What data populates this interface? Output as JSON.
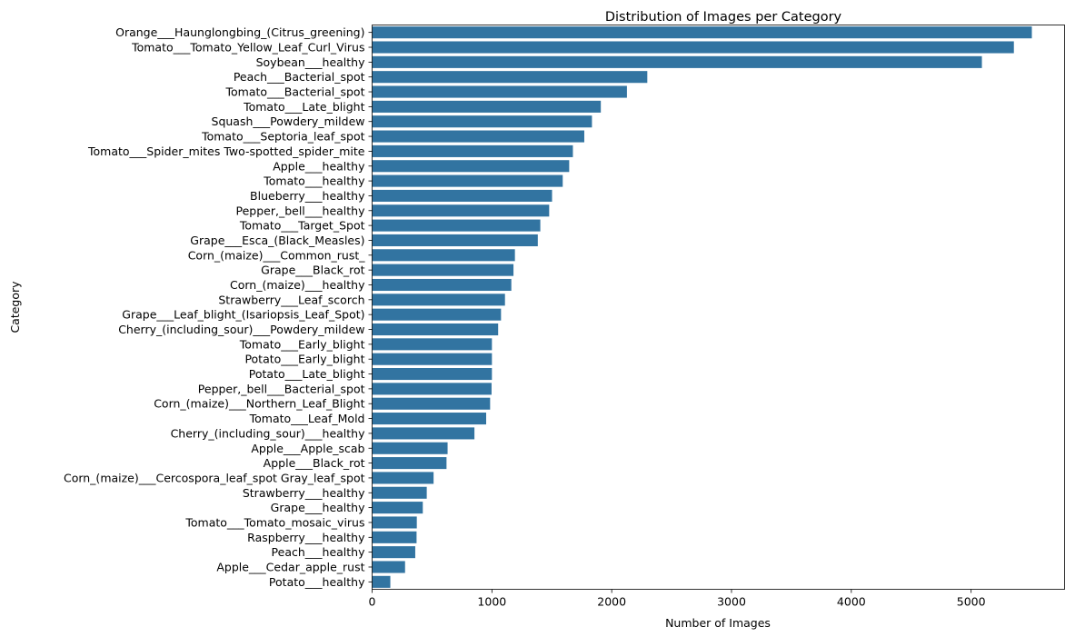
{
  "chart_data": {
    "type": "bar",
    "orientation": "horizontal",
    "title": "Distribution of Images per Category",
    "xlabel": "Number of Images",
    "ylabel": "Category",
    "xlim": [
      0,
      5780
    ],
    "xticks": [
      0,
      1000,
      2000,
      3000,
      4000,
      5000
    ],
    "grid": false,
    "color": "#3274a1",
    "categories": [
      "Orange___Haunglongbing_(Citrus_greening)",
      "Tomato___Tomato_Yellow_Leaf_Curl_Virus",
      "Soybean___healthy",
      "Peach___Bacterial_spot",
      "Tomato___Bacterial_spot",
      "Tomato___Late_blight",
      "Squash___Powdery_mildew",
      "Tomato___Septoria_leaf_spot",
      "Tomato___Spider_mites Two-spotted_spider_mite",
      "Apple___healthy",
      "Tomato___healthy",
      "Blueberry___healthy",
      "Pepper,_bell___healthy",
      "Tomato___Target_Spot",
      "Grape___Esca_(Black_Measles)",
      "Corn_(maize)___Common_rust_",
      "Grape___Black_rot",
      "Corn_(maize)___healthy",
      "Strawberry___Leaf_scorch",
      "Grape___Leaf_blight_(Isariopsis_Leaf_Spot)",
      "Cherry_(including_sour)___Powdery_mildew",
      "Tomato___Early_blight",
      "Potato___Early_blight",
      "Potato___Late_blight",
      "Pepper,_bell___Bacterial_spot",
      "Corn_(maize)___Northern_Leaf_Blight",
      "Tomato___Leaf_Mold",
      "Cherry_(including_sour)___healthy",
      "Apple___Apple_scab",
      "Apple___Black_rot",
      "Corn_(maize)___Cercospora_leaf_spot Gray_leaf_spot",
      "Strawberry___healthy",
      "Grape___healthy",
      "Tomato___Tomato_mosaic_virus",
      "Raspberry___healthy",
      "Peach___healthy",
      "Apple___Cedar_apple_rust",
      "Potato___healthy"
    ],
    "values": [
      5507,
      5357,
      5090,
      2297,
      2127,
      1909,
      1835,
      1771,
      1676,
      1645,
      1591,
      1502,
      1478,
      1404,
      1383,
      1192,
      1180,
      1162,
      1109,
      1076,
      1052,
      1000,
      1000,
      1000,
      997,
      985,
      952,
      854,
      630,
      621,
      513,
      456,
      423,
      373,
      371,
      360,
      275,
      152
    ]
  }
}
